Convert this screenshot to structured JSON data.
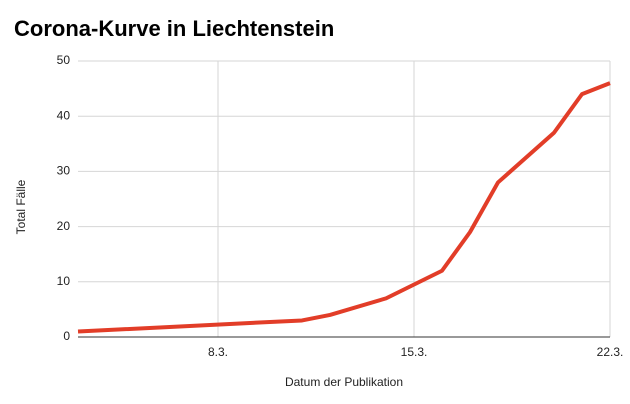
{
  "chart_data": {
    "type": "line",
    "title": "Corona-Kurve in Liechtenstein",
    "x_label": "Datum der Publikation",
    "y_label": "Total Fälle",
    "x": [
      3,
      11,
      12,
      14,
      16,
      17,
      18,
      20,
      21,
      22
    ],
    "series": [
      {
        "name": "Total Fälle",
        "color": "#e23d28",
        "values": [
          1,
          3,
          4,
          7,
          12,
          19,
          28,
          37,
          44,
          46
        ]
      }
    ],
    "xlim": [
      3,
      22
    ],
    "xticks": [
      {
        "value": 8,
        "label": "8.3."
      },
      {
        "value": 15,
        "label": "15.3."
      },
      {
        "value": 22,
        "label": "22.3."
      }
    ],
    "ylim": [
      0,
      50
    ],
    "yticks": [
      0,
      10,
      20,
      30,
      40,
      50
    ],
    "grid": true
  }
}
